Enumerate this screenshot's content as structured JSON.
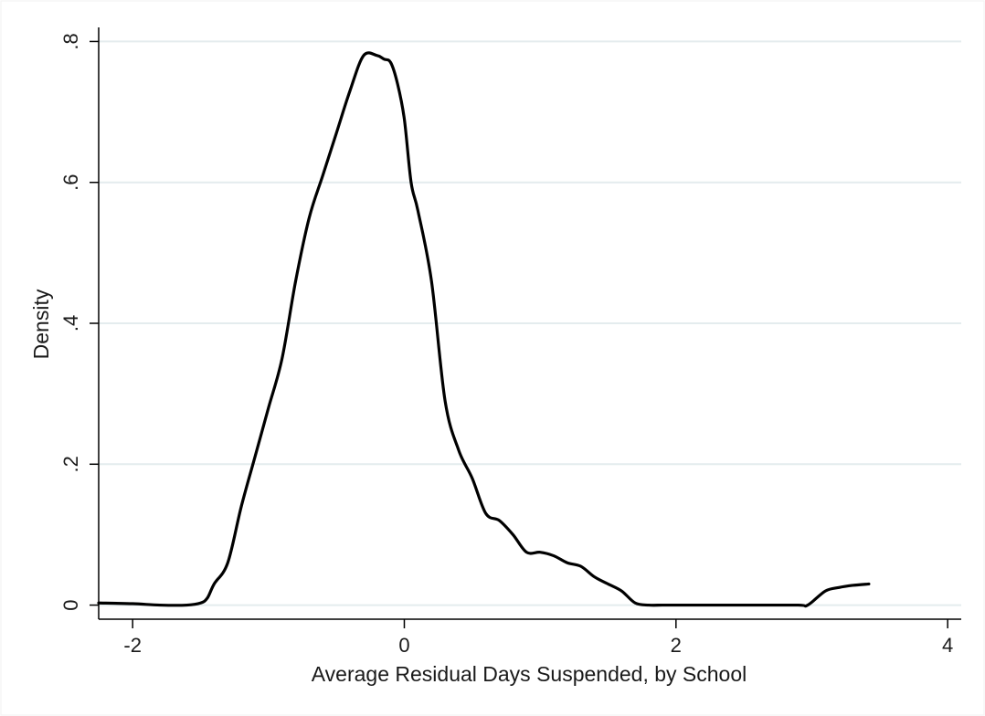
{
  "chart_data": {
    "type": "line",
    "title": "",
    "xlabel": "Average Residual Days Suspended, by School",
    "ylabel": "Density",
    "xlim": [
      -2.25,
      4.1
    ],
    "ylim": [
      -0.02,
      0.82
    ],
    "grid": true,
    "x_ticks": [
      -2,
      0,
      2,
      4
    ],
    "x_tick_labels": [
      "-2",
      "0",
      "2",
      "4"
    ],
    "y_ticks": [
      0,
      0.2,
      0.4,
      0.6,
      0.8
    ],
    "y_tick_labels": [
      "0",
      ".2",
      ".4",
      ".6",
      ".8"
    ],
    "series": [
      {
        "x": [
          -2.25,
          -2.0,
          -1.8,
          -1.6,
          -1.5,
          -1.45,
          -1.4,
          -1.3,
          -1.2,
          -1.1,
          -1.0,
          -0.9,
          -0.8,
          -0.7,
          -0.6,
          -0.5,
          -0.4,
          -0.3,
          -0.2,
          -0.15,
          -0.1,
          -0.05,
          0.0,
          0.05,
          0.1,
          0.2,
          0.3,
          0.4,
          0.5,
          0.6,
          0.7,
          0.8,
          0.9,
          1.0,
          1.1,
          1.2,
          1.3,
          1.4,
          1.5,
          1.6,
          1.7,
          1.8,
          1.9,
          2.0,
          2.1,
          2.5,
          2.9,
          2.97,
          3.1,
          3.2,
          3.3,
          3.42
        ],
        "y": [
          0.003,
          0.002,
          0.0,
          0.0,
          0.003,
          0.01,
          0.03,
          0.06,
          0.14,
          0.21,
          0.28,
          0.35,
          0.46,
          0.55,
          0.61,
          0.67,
          0.73,
          0.78,
          0.78,
          0.775,
          0.77,
          0.74,
          0.69,
          0.6,
          0.56,
          0.46,
          0.29,
          0.22,
          0.18,
          0.13,
          0.12,
          0.1,
          0.075,
          0.075,
          0.07,
          0.06,
          0.055,
          0.04,
          0.03,
          0.02,
          0.003,
          0.0,
          0.0,
          0.0,
          0.0,
          0.0,
          0.0,
          0.0,
          0.02,
          0.025,
          0.028,
          0.03
        ]
      }
    ]
  }
}
